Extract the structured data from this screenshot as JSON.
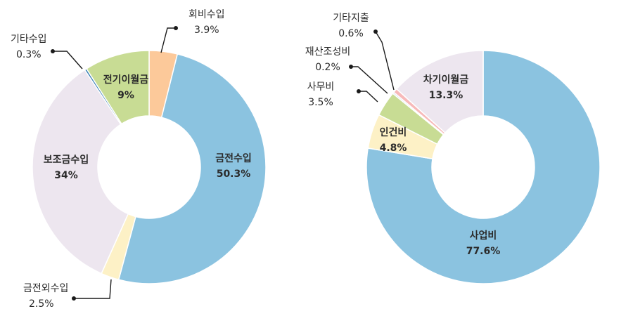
{
  "chart_data": [
    {
      "type": "pie",
      "donut": true,
      "title": "",
      "slices": [
        {
          "label": "회비수입",
          "value_text": "3.9%",
          "value": 3.9,
          "color": "#fcc99a"
        },
        {
          "label": "금전수입",
          "value_text": "50.3%",
          "value": 50.3,
          "color": "#8bc3e0"
        },
        {
          "label": "금전외수입",
          "value_text": "2.5%",
          "value": 2.5,
          "color": "#fdf1c6"
        },
        {
          "label": "보조금수입",
          "value_text": "34%",
          "value": 34,
          "color": "#ede6ef"
        },
        {
          "label": "기타수입",
          "value_text": "0.3%",
          "value": 0.3,
          "color": "#3a7fb4"
        },
        {
          "label": "전기이월금",
          "value_text": "9%",
          "value": 9,
          "color": "#c8dc94"
        }
      ]
    },
    {
      "type": "pie",
      "donut": true,
      "title": "",
      "slices": [
        {
          "label": "사업비",
          "value_text": "77.6%",
          "value": 77.6,
          "color": "#8bc3e0"
        },
        {
          "label": "인건비",
          "value_text": "4.8%",
          "value": 4.8,
          "color": "#fdf1c6"
        },
        {
          "label": "사무비",
          "value_text": "3.5%",
          "value": 3.5,
          "color": "#c8dc94"
        },
        {
          "label": "재산조성비",
          "value_text": "0.2%",
          "value": 0.2,
          "color": "#b9cfe6"
        },
        {
          "label": "기타지출",
          "value_text": "0.6%",
          "value": 0.6,
          "color": "#f7b9b9"
        },
        {
          "label": "차기이월금",
          "value_text": "13.3%",
          "value": 13.3,
          "color": "#ede6ef"
        }
      ]
    }
  ]
}
